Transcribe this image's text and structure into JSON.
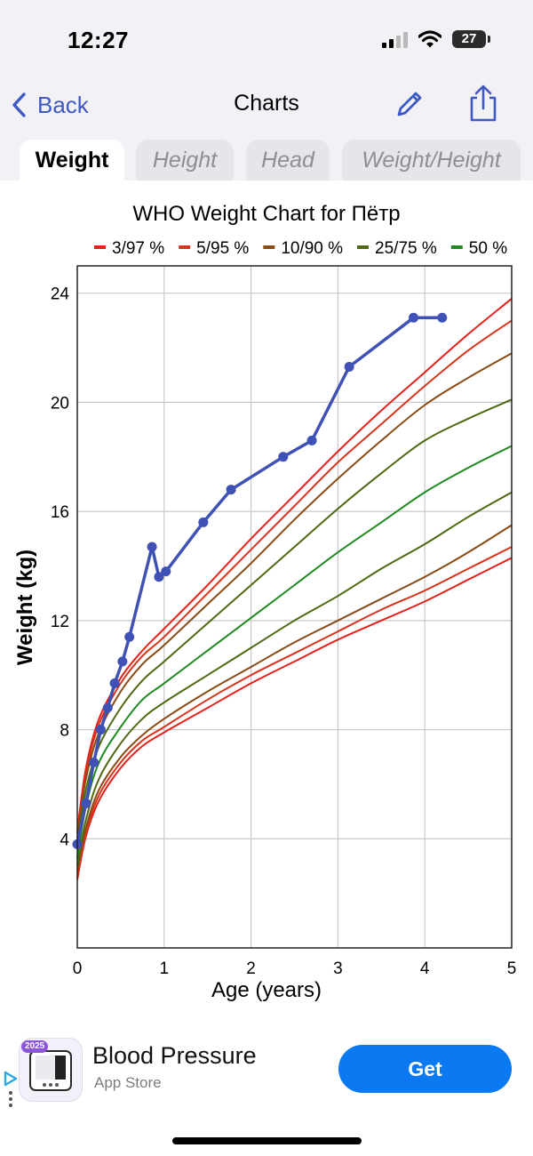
{
  "status_bar": {
    "time": "12:27",
    "battery": "27"
  },
  "nav": {
    "back_label": "Back",
    "title": "Charts"
  },
  "tabs": [
    {
      "label": "Weight",
      "active": true
    },
    {
      "label": "Height",
      "active": false
    },
    {
      "label": "Head",
      "active": false
    },
    {
      "label": "Weight/Height",
      "active": false
    }
  ],
  "chart_data": {
    "type": "line",
    "title": "WHO Weight Chart for Пётр",
    "xlabel": "Age (years)",
    "ylabel": "Weight (kg)",
    "xlim": [
      0,
      5
    ],
    "ylim": [
      0,
      25
    ],
    "x_ticks": [
      0,
      1,
      2,
      3,
      4,
      5
    ],
    "y_ticks": [
      4,
      8,
      12,
      16,
      20,
      24
    ],
    "grid": true,
    "legend": [
      {
        "label": "3/97 %",
        "color": "#e8211b"
      },
      {
        "label": "5/95 %",
        "color": "#d8341b"
      },
      {
        "label": "10/90 %",
        "color": "#8a4a14"
      },
      {
        "label": "25/75 %",
        "color": "#4d6a12"
      },
      {
        "label": "50 %",
        "color": "#1f8a1f"
      }
    ],
    "legend_placement": "top",
    "percentile_curves": [
      {
        "name": "3/97 %",
        "color": "#e8211b",
        "x": [
          0,
          0.1,
          0.25,
          0.5,
          0.75,
          1,
          1.5,
          2,
          2.5,
          3,
          3.5,
          4,
          4.5,
          5
        ],
        "lower": [
          2.5,
          4.1,
          5.4,
          6.6,
          7.4,
          7.9,
          8.8,
          9.7,
          10.5,
          11.3,
          12.0,
          12.7,
          13.5,
          14.3
        ],
        "upper": [
          4.3,
          6.6,
          8.4,
          9.9,
          10.9,
          11.7,
          13.3,
          15.0,
          16.6,
          18.2,
          19.7,
          21.1,
          22.5,
          23.8
        ]
      },
      {
        "name": "5/95 %",
        "color": "#d8341b",
        "x": [
          0,
          0.1,
          0.25,
          0.5,
          0.75,
          1,
          1.5,
          2,
          2.5,
          3,
          3.5,
          4,
          4.5,
          5
        ],
        "lower": [
          2.6,
          4.2,
          5.6,
          6.8,
          7.6,
          8.1,
          9.1,
          10.0,
          10.8,
          11.6,
          12.4,
          13.1,
          13.9,
          14.7
        ],
        "upper": [
          4.2,
          6.4,
          8.2,
          9.7,
          10.7,
          11.4,
          13.0,
          14.6,
          16.2,
          17.8,
          19.2,
          20.6,
          21.9,
          23.0
        ]
      },
      {
        "name": "10/90 %",
        "color": "#8a4a14",
        "x": [
          0,
          0.1,
          0.25,
          0.5,
          0.75,
          1,
          1.5,
          2,
          2.5,
          3,
          3.5,
          4,
          4.5,
          5
        ],
        "lower": [
          2.8,
          4.4,
          5.8,
          7.0,
          7.8,
          8.4,
          9.4,
          10.3,
          11.2,
          12.0,
          12.8,
          13.6,
          14.5,
          15.5
        ],
        "upper": [
          4.0,
          6.2,
          7.9,
          9.4,
          10.4,
          11.1,
          12.6,
          14.1,
          15.7,
          17.2,
          18.6,
          19.9,
          20.9,
          21.8
        ]
      },
      {
        "name": "25/75 %",
        "color": "#4d6a12",
        "x": [
          0,
          0.1,
          0.25,
          0.5,
          0.75,
          1,
          1.5,
          2,
          2.5,
          3,
          3.5,
          4,
          4.5,
          5
        ],
        "lower": [
          3.0,
          4.7,
          6.2,
          7.5,
          8.4,
          9.0,
          10.0,
          11.0,
          12.0,
          12.9,
          13.9,
          14.8,
          15.8,
          16.7
        ],
        "upper": [
          3.7,
          5.8,
          7.4,
          8.8,
          9.8,
          10.5,
          11.9,
          13.3,
          14.7,
          16.1,
          17.4,
          18.6,
          19.4,
          20.1
        ]
      },
      {
        "name": "50 %",
        "color": "#1f8a1f",
        "x": [
          0,
          0.1,
          0.25,
          0.5,
          0.75,
          1,
          1.5,
          2,
          2.5,
          3,
          3.5,
          4,
          4.5,
          5
        ],
        "values": [
          3.3,
          5.2,
          6.8,
          8.1,
          9.1,
          9.7,
          10.9,
          12.1,
          13.3,
          14.5,
          15.6,
          16.7,
          17.6,
          18.4
        ]
      }
    ],
    "series": [
      {
        "color": "#3f51b5",
        "x": [
          0,
          0.1,
          0.19,
          0.27,
          0.35,
          0.43,
          0.52,
          0.6,
          0.86,
          0.94,
          1.02,
          1.45,
          1.77,
          2.37,
          2.7,
          3.13,
          3.87,
          4.2
        ],
        "y": [
          3.8,
          5.3,
          6.8,
          8.0,
          8.8,
          9.7,
          10.5,
          11.4,
          14.7,
          13.6,
          13.8,
          15.6,
          16.8,
          18.0,
          18.6,
          21.3,
          23.1,
          23.1
        ]
      }
    ]
  },
  "ad": {
    "badge": "2025",
    "title": "Blood Pressure",
    "subtitle": "App Store",
    "cta": "Get"
  }
}
